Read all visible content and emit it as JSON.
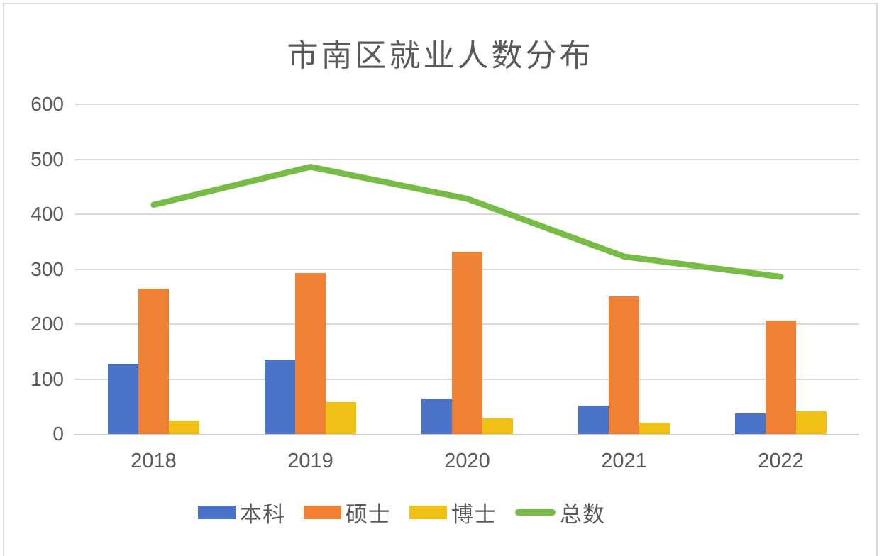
{
  "chart_data": {
    "type": "combo-bar-line",
    "title": "市南区就业人数分布",
    "categories": [
      "2018",
      "2019",
      "2020",
      "2021",
      "2022"
    ],
    "series": [
      {
        "name": "本科",
        "key": "bachelor",
        "type": "bar",
        "color": "#4A73C8",
        "values": [
          128,
          135,
          65,
          51,
          38
        ]
      },
      {
        "name": "硕士",
        "key": "master",
        "type": "bar",
        "color": "#EE8133",
        "values": [
          264,
          293,
          332,
          250,
          207
        ]
      },
      {
        "name": "博士",
        "key": "doctor",
        "type": "bar",
        "color": "#F0C015",
        "values": [
          25,
          58,
          28,
          21,
          41
        ]
      },
      {
        "name": "总数",
        "key": "total",
        "type": "line",
        "color": "#77BC45",
        "values": [
          417,
          486,
          428,
          323,
          286
        ]
      }
    ],
    "xlabel": "",
    "ylabel": "",
    "ylim": [
      0,
      600
    ],
    "yticks": [
      0,
      100,
      200,
      300,
      400,
      500,
      600
    ],
    "grid": true,
    "legend_position": "bottom",
    "colors": {
      "text": "#595959",
      "gridline": "#D9D9D9",
      "axis_line": "#C9C9C9",
      "frame_border": "#D9D9D9",
      "background": "#FFFFFF"
    }
  }
}
